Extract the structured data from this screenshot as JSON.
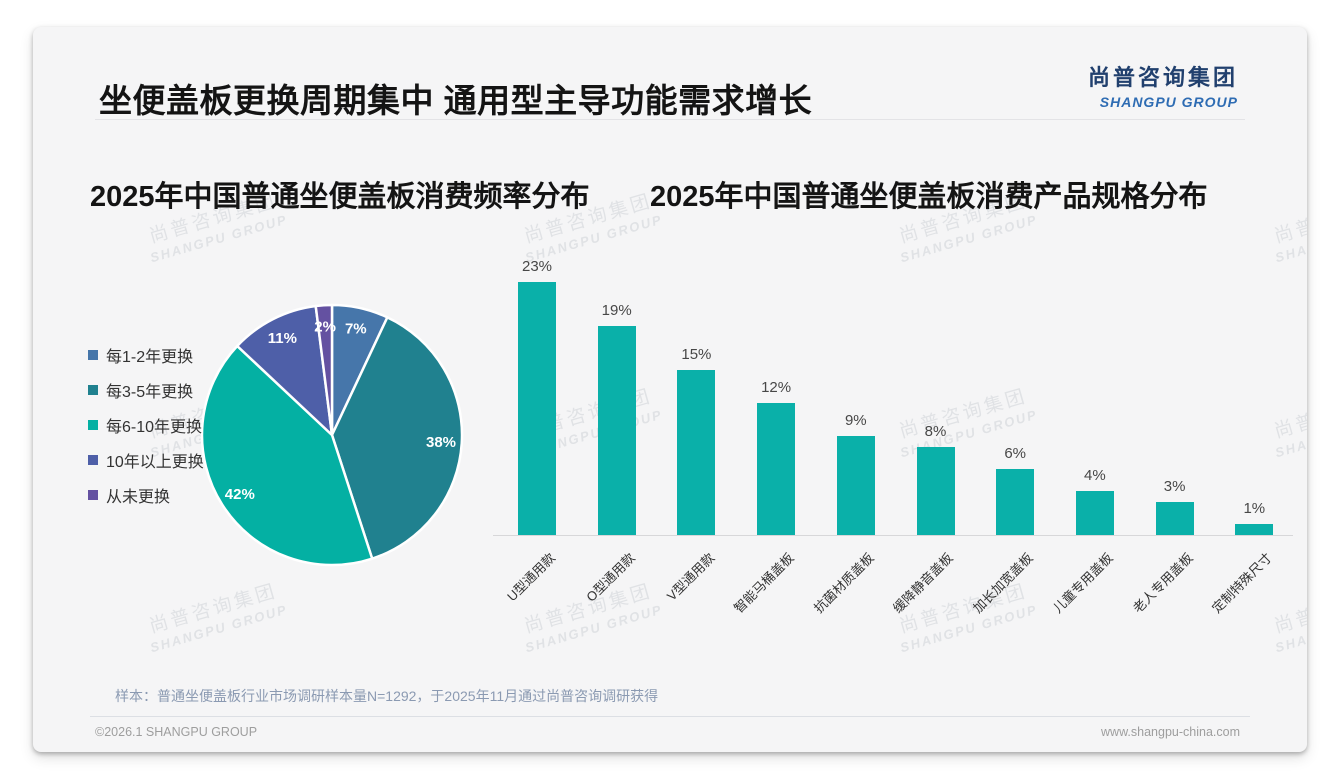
{
  "page": {
    "title": "坐便盖板更换周期集中 通用型主导功能需求增长",
    "logo": {
      "cn": "尚普咨询集团",
      "en": "SHANGPU GROUP"
    },
    "watermark": {
      "line1": "尚普咨询集团",
      "line2": "SHANGPU GROUP"
    },
    "footnote": "样本：普通坐便盖板行业市场调研样本量N=1292，于2025年11月通过尚普咨询调研获得",
    "footer": {
      "copyright": "©2026.1 SHANGPU GROUP",
      "website": "www.shangpu-china.com"
    }
  },
  "colors": {
    "card_bg": "#f5f5f6",
    "bar": "#0ab0a9",
    "logo_cn": "#21406e",
    "logo_en": "#2e6cb3",
    "pie_slices": [
      "#4676aa",
      "#20818f",
      "#04b0a3",
      "#4e5fa8",
      "#6451a1"
    ]
  },
  "chart_data": [
    {
      "type": "pie",
      "title": "2025年中国普通坐便盖板消费频率分布",
      "categories": [
        "每1-2年更换",
        "每3-5年更换",
        "每6-10年更换",
        "10年以上更换",
        "从未更换"
      ],
      "values": [
        7,
        38,
        42,
        11,
        2
      ],
      "unit": "%",
      "colors": [
        "#4676aa",
        "#20818f",
        "#04b0a3",
        "#4e5fa8",
        "#6451a1"
      ],
      "legend_position": "left",
      "start_angle": "12-oclock",
      "direction": "clockwise",
      "data_labels": "inside-white-bold"
    },
    {
      "type": "bar",
      "title": "2025年中国普通坐便盖板消费产品规格分布",
      "categories": [
        "U型通用款",
        "O型通用款",
        "V型通用款",
        "智能马桶盖板",
        "抗菌材质盖板",
        "缓降静音盖板",
        "加长加宽盖板",
        "儿童专用盖板",
        "老人专用盖板",
        "定制特殊尺寸"
      ],
      "values": [
        23,
        19,
        15,
        12,
        9,
        8,
        6,
        4,
        3,
        1
      ],
      "unit": "%",
      "bar_color": "#0ab0a9",
      "ylim": [
        0,
        25
      ],
      "grid": false,
      "y_axis_visible": false,
      "data_labels": "above-bars",
      "x_label_rotation_deg": 45
    }
  ]
}
